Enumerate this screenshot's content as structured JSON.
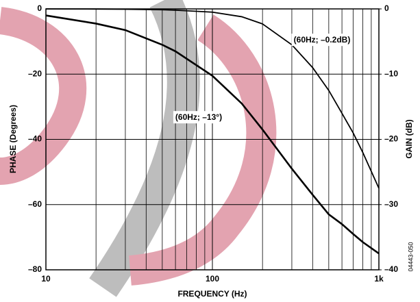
{
  "chart_data": {
    "type": "line",
    "xlabel": "FREQUENCY (Hz)",
    "ylabel": "PHASE (Degrees)",
    "y2label": "GAIN (dB)",
    "figure_code": "04443-050",
    "annotations": [
      "(60Hz; –0.2dB)",
      "(60Hz; –13°)"
    ],
    "x": [
      10,
      20,
      30,
      50,
      60,
      100,
      150,
      200,
      300,
      400,
      500,
      600,
      700,
      800,
      1000
    ],
    "xscale": "log",
    "xlim": [
      10,
      1000
    ],
    "xticks": [
      10,
      100,
      {
        "value": 1000,
        "label": "1k"
      }
    ],
    "x_minor_ticks": [
      20,
      30,
      40,
      50,
      60,
      70,
      80,
      90,
      200,
      300,
      400,
      500,
      600,
      700,
      800,
      900
    ],
    "ylim": [
      -80,
      0
    ],
    "yticks": [
      0,
      {
        "value": -20,
        "label": "–20"
      },
      {
        "value": -40,
        "label": "–40"
      },
      {
        "value": -60,
        "label": "–60"
      },
      {
        "value": -80,
        "label": "–80"
      }
    ],
    "y2lim": [
      -40,
      0
    ],
    "y2ticks": [
      0,
      {
        "value": -10,
        "label": "–10"
      },
      {
        "value": -20,
        "label": "–20"
      },
      {
        "value": -30,
        "label": "–30"
      },
      {
        "value": -40,
        "label": "–40"
      }
    ],
    "grid": true,
    "series": [
      {
        "name": "Phase",
        "color": "#000000",
        "axis": "y",
        "values": [
          -2,
          -4.5,
          -6.5,
          -11,
          -13,
          -20.5,
          -29,
          -37,
          -49,
          -57,
          -63,
          -66,
          -69,
          -71.5,
          -75
        ]
      },
      {
        "name": "Gain",
        "color": "#000000",
        "axis": "y2",
        "values": [
          0,
          -0.02,
          -0.05,
          -0.13,
          -0.2,
          -0.5,
          -1.2,
          -2.3,
          -5.5,
          -9,
          -12.5,
          -16,
          -19,
          -22,
          -27.5
        ]
      }
    ]
  }
}
